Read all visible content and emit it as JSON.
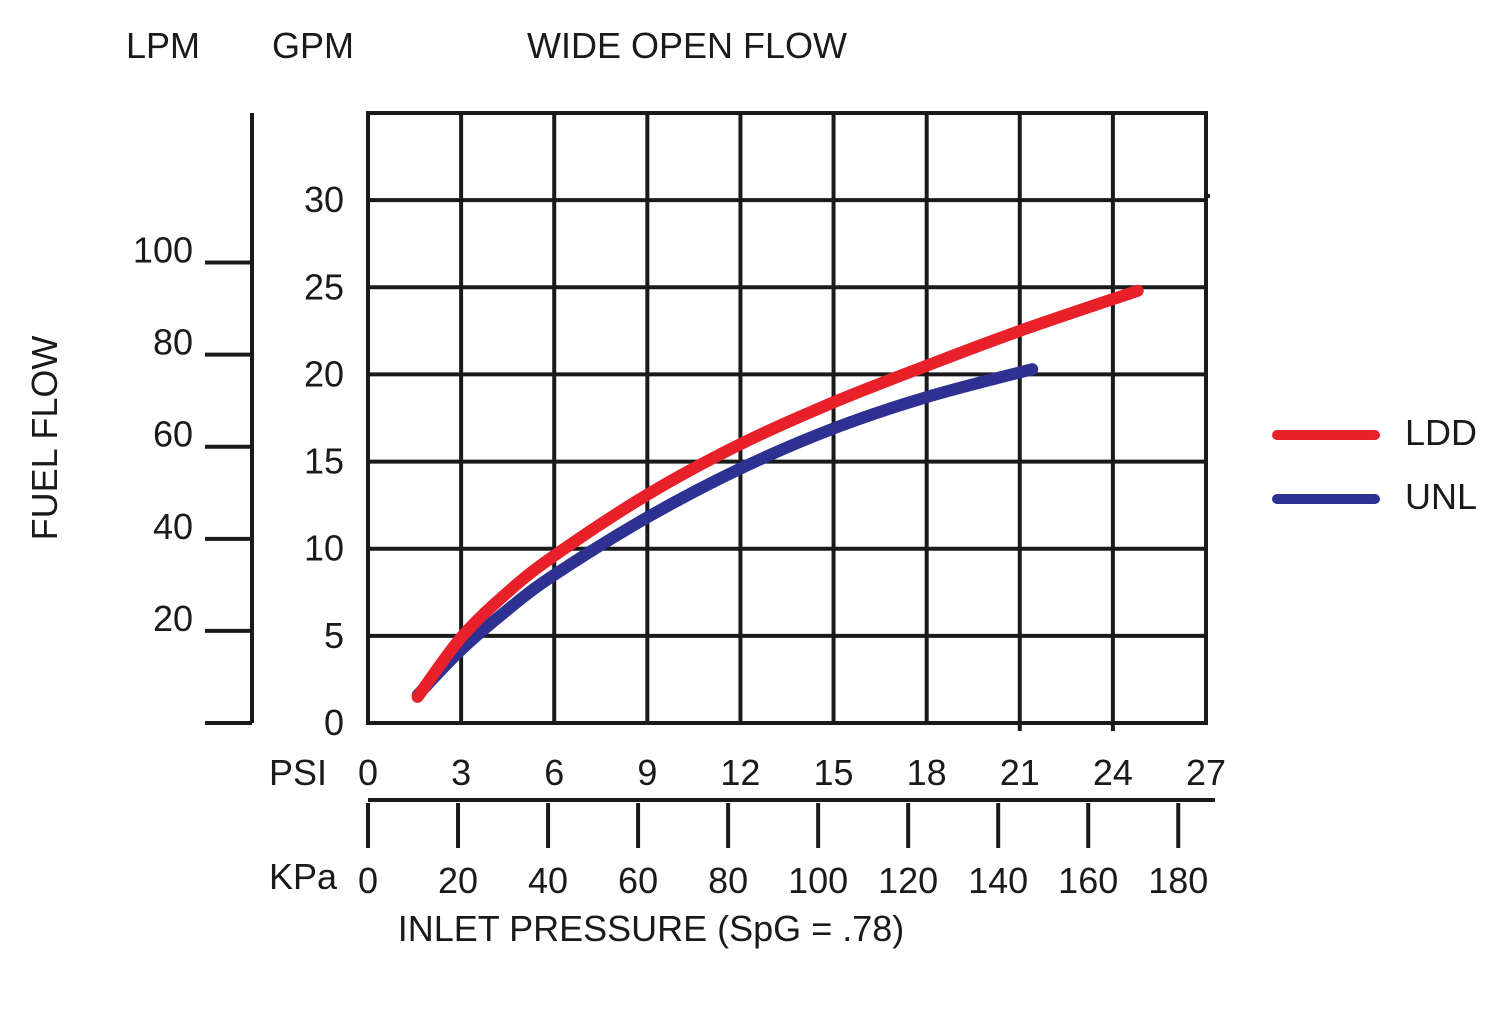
{
  "chart_data": {
    "type": "line",
    "title": "WIDE OPEN FLOW",
    "ylabel": "FUEL FLOW",
    "y_unit_primary": "GPM",
    "y_unit_secondary": "LPM",
    "x_unit_primary": "PSI",
    "x_unit_secondary": "KPa",
    "xlabel": "INLET PRESSURE (SpG = .78)",
    "xlim": [
      0,
      27
    ],
    "ylim": [
      0,
      35
    ],
    "grid": true,
    "legend_position": "right",
    "gpm_ticks": [
      "0",
      "5",
      "10",
      "15",
      "20",
      "25",
      "30"
    ],
    "lpm_ticks": [
      "20",
      "40",
      "60",
      "80",
      "100"
    ],
    "psi_ticks": [
      "0",
      "3",
      "6",
      "9",
      "12",
      "15",
      "18",
      "21",
      "24",
      "27"
    ],
    "kpa_ticks": [
      "0",
      "20",
      "40",
      "60",
      "80",
      "100",
      "120",
      "140",
      "160",
      "180"
    ],
    "series": [
      {
        "name": "LDD",
        "color": "#e8202a",
        "x": [
          1.6,
          3,
          4.5,
          6,
          9,
          12,
          15,
          18,
          21,
          24.8
        ],
        "y": [
          1.5,
          4.9,
          7.5,
          9.6,
          13.1,
          16.0,
          18.4,
          20.5,
          22.5,
          24.8
        ]
      },
      {
        "name": "UNL",
        "color": "#2e3192",
        "x": [
          1.6,
          3,
          4.5,
          6,
          9,
          12,
          15,
          18,
          21.4
        ],
        "y": [
          1.6,
          4.2,
          6.5,
          8.5,
          11.8,
          14.6,
          16.9,
          18.7,
          20.3
        ]
      }
    ]
  }
}
